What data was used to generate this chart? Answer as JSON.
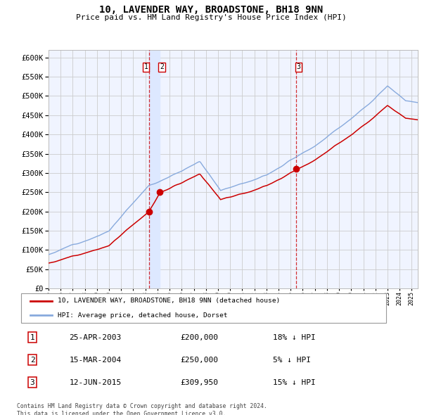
{
  "title": "10, LAVENDER WAY, BROADSTONE, BH18 9NN",
  "subtitle": "Price paid vs. HM Land Registry's House Price Index (HPI)",
  "ylim": [
    0,
    620000
  ],
  "yticks": [
    0,
    50000,
    100000,
    150000,
    200000,
    250000,
    300000,
    350000,
    400000,
    450000,
    500000,
    550000,
    600000
  ],
  "plot_bg": "#f0f4ff",
  "grid_color": "#cccccc",
  "hpi_color": "#88aadd",
  "price_color": "#cc0000",
  "vline_color": "#cc0000",
  "vband_color": "#dde8ff",
  "sale_years": [
    2003.292,
    2004.204,
    2015.458
  ],
  "sale_prices": [
    200000,
    250000,
    309950
  ],
  "sale_labels": [
    "1",
    "2",
    "3"
  ],
  "legend_line1": "10, LAVENDER WAY, BROADSTONE, BH18 9NN (detached house)",
  "legend_line2": "HPI: Average price, detached house, Dorset",
  "footer": "Contains HM Land Registry data © Crown copyright and database right 2024.\nThis data is licensed under the Open Government Licence v3.0.",
  "table_rows": [
    [
      "1",
      "25-APR-2003",
      "£200,000",
      "18% ↓ HPI"
    ],
    [
      "2",
      "15-MAR-2004",
      "£250,000",
      "5% ↓ HPI"
    ],
    [
      "3",
      "12-JUN-2015",
      "£309,950",
      "15% ↓ HPI"
    ]
  ],
  "xmin": 1995,
  "xmax": 2025.5
}
